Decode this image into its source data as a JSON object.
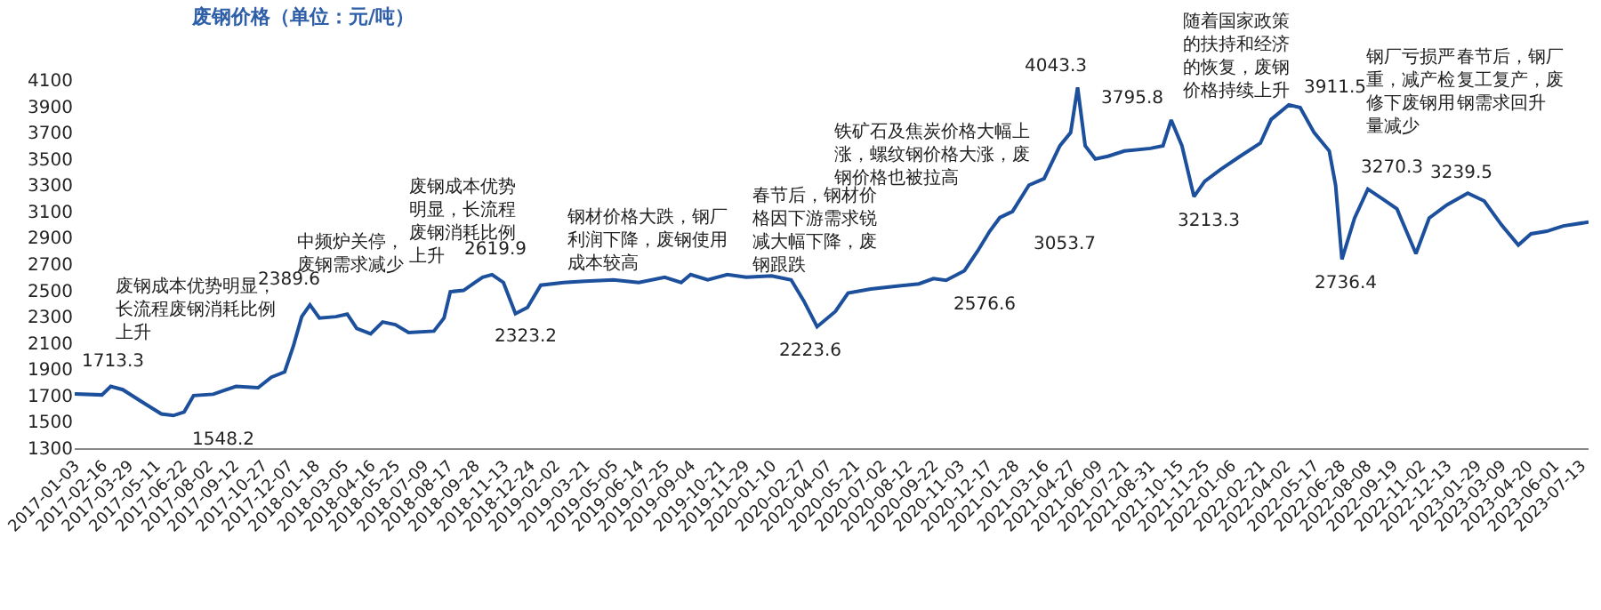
{
  "chart_data": {
    "type": "line",
    "title": "废钢价格（单位：元/吨）",
    "x": [
      "2017-01-03",
      "2017-02-15",
      "2017-03-01",
      "2017-03-20",
      "2017-04-20",
      "2017-05-20",
      "2017-06-08",
      "2017-06-25",
      "2017-07-10",
      "2017-08-10",
      "2017-09-15",
      "2017-10-20",
      "2017-11-10",
      "2017-12-01",
      "2017-12-15",
      "2017-12-28",
      "2018-01-10",
      "2018-01-25",
      "2018-02-20",
      "2018-03-10",
      "2018-03-25",
      "2018-04-16",
      "2018-05-05",
      "2018-05-25",
      "2018-06-15",
      "2018-07-25",
      "2018-08-10",
      "2018-08-20",
      "2018-09-10",
      "2018-09-28",
      "2018-10-10",
      "2018-10-25",
      "2018-11-12",
      "2018-12-01",
      "2018-12-20",
      "2019-01-10",
      "2019-02-15",
      "2019-03-21",
      "2019-05-05",
      "2019-06-14",
      "2019-07-25",
      "2019-08-20",
      "2019-09-04",
      "2019-10-01",
      "2019-11-01",
      "2019-12-01",
      "2020-01-10",
      "2020-02-10",
      "2020-03-01",
      "2020-03-22",
      "2020-04-20",
      "2020-05-10",
      "2020-06-15",
      "2020-07-20",
      "2020-08-30",
      "2020-09-22",
      "2020-10-12",
      "2020-11-10",
      "2020-12-01",
      "2020-12-20",
      "2021-01-05",
      "2021-01-25",
      "2021-02-20",
      "2021-03-16",
      "2021-04-10",
      "2021-04-27",
      "2021-05-08",
      "2021-05-20",
      "2021-06-05",
      "2021-06-25",
      "2021-07-21",
      "2021-08-31",
      "2021-09-20",
      "2021-10-03",
      "2021-10-20",
      "2021-11-08",
      "2021-11-25",
      "2021-12-20",
      "2022-01-20",
      "2022-02-21",
      "2022-03-10",
      "2022-04-07",
      "2022-04-25",
      "2022-05-17",
      "2022-06-10",
      "2022-06-20",
      "2022-06-30",
      "2022-07-20",
      "2022-08-10",
      "2022-09-01",
      "2022-09-25",
      "2022-10-25",
      "2022-11-15",
      "2022-12-13",
      "2023-01-15",
      "2023-02-10",
      "2023-03-09",
      "2023-04-05",
      "2023-04-25",
      "2023-05-20",
      "2023-06-15",
      "2023-07-25"
    ],
    "values": [
      1713.3,
      1705,
      1770,
      1745,
      1650,
      1560,
      1548.2,
      1575,
      1700,
      1710,
      1770,
      1760,
      1840,
      1880,
      2080,
      2300,
      2389.6,
      2290,
      2300,
      2320,
      2210,
      2170,
      2260,
      2240,
      2180,
      2190,
      2290,
      2490,
      2500,
      2560,
      2600,
      2619.9,
      2560,
      2323.2,
      2370,
      2540,
      2560,
      2570,
      2580,
      2560,
      2600,
      2560,
      2620,
      2580,
      2620,
      2600,
      2610,
      2580,
      2420,
      2223.6,
      2340,
      2480,
      2510,
      2530,
      2550,
      2590,
      2576.6,
      2650,
      2800,
      2950,
      3053.7,
      3100,
      3300,
      3350,
      3600,
      3700,
      4043.3,
      3600,
      3500,
      3520,
      3560,
      3580,
      3600,
      3795.8,
      3600,
      3213.3,
      3330,
      3420,
      3520,
      3620,
      3800,
      3911.5,
      3890,
      3700,
      3560,
      3300,
      2736.4,
      3050,
      3270.3,
      3200,
      3120,
      2780,
      3050,
      3150,
      3239.5,
      3180,
      3000,
      2845,
      2930,
      2950,
      2990,
      3020
    ],
    "color": "#1c4f9c",
    "xlim": [
      "2017-01-03",
      "2023-07-25"
    ],
    "xticks": [
      "2017-01-03",
      "2017-02-16",
      "2017-03-29",
      "2017-05-11",
      "2017-06-22",
      "2017-08-02",
      "2017-09-12",
      "2017-10-27",
      "2017-12-07",
      "2018-01-18",
      "2018-03-05",
      "2018-04-16",
      "2018-05-25",
      "2018-07-09",
      "2018-08-17",
      "2018-09-28",
      "2018-11-13",
      "2018-12-24",
      "2019-02-02",
      "2019-03-21",
      "2019-05-05",
      "2019-06-14",
      "2019-07-25",
      "2019-09-04",
      "2019-10-21",
      "2019-11-29",
      "2020-01-10",
      "2020-02-27",
      "2020-04-07",
      "2020-05-21",
      "2020-07-02",
      "2020-08-12",
      "2020-09-22",
      "2020-11-03",
      "2020-12-17",
      "2021-01-28",
      "2021-03-16",
      "2021-04-27",
      "2021-06-09",
      "2021-07-21",
      "2021-08-31",
      "2021-10-15",
      "2021-11-25",
      "2022-01-06",
      "2022-02-21",
      "2022-04-02",
      "2022-05-17",
      "2022-06-28",
      "2022-08-08",
      "2022-09-19",
      "2022-11-02",
      "2022-12-13",
      "2023-01-29",
      "2023-03-09",
      "2023-04-20",
      "2023-06-01",
      "2023-07-13"
    ],
    "ylim": [
      1300,
      4100
    ],
    "yticks": [
      1300,
      1500,
      1700,
      1900,
      2100,
      2300,
      2500,
      2700,
      2900,
      3100,
      3300,
      3500,
      3700,
      3900,
      4100
    ],
    "grid": false,
    "legend": false,
    "annotations": [
      "废钢成本优势明显，长流程废钢消耗比例上升",
      "中频炉关停，废钢需求减少",
      "废钢成本优势明显，长流程废钢消耗比例上升",
      "钢材价格大跌，钢厂利润下降，废钢使用成本较高",
      "春节后，钢材价格因下游需求锐减大幅下降，废钢跟跌",
      "铁矿石及焦炭价格大幅上涨，螺纹钢价格大涨，废钢价格也被拉高",
      "随着国家政策的扶持和经济的恢复，废钢价格持续上升",
      "钢厂亏损严重，减产检修下废钢用量减少",
      "春节后，钢厂复工复产，废钢需求回升",
      {
        "text": "1713.3",
        "x": "2017-01-03",
        "y": 1713.3
      },
      {
        "text": "1548.2",
        "x": "2017-06-08",
        "y": 1548.2
      },
      {
        "text": "2389.6",
        "x": "2018-01-10",
        "y": 2389.6
      },
      {
        "text": "2619.9",
        "x": "2018-10-25",
        "y": 2619.9
      },
      {
        "text": "2323.2",
        "x": "2018-12-01",
        "y": 2323.2
      },
      {
        "text": "2223.6",
        "x": "2020-03-22",
        "y": 2223.6
      },
      {
        "text": "2576.6",
        "x": "2020-10-12",
        "y": 2576.6
      },
      {
        "text": "3053.7",
        "x": "2021-01-05",
        "y": 3053.7
      },
      {
        "text": "4043.3",
        "x": "2021-05-08",
        "y": 4043.3
      },
      {
        "text": "3795.8",
        "x": "2021-10-03",
        "y": 3795.8
      },
      {
        "text": "3213.3",
        "x": "2021-11-08",
        "y": 3213.3
      },
      {
        "text": "3911.5",
        "x": "2022-04-07",
        "y": 3911.5
      },
      {
        "text": "2736.4",
        "x": "2022-06-30",
        "y": 2736.4
      },
      {
        "text": "3270.3",
        "x": "2022-08-10",
        "y": 3270.3
      },
      {
        "text": "3239.5",
        "x": "2023-01-15",
        "y": 3239.5
      }
    ]
  }
}
